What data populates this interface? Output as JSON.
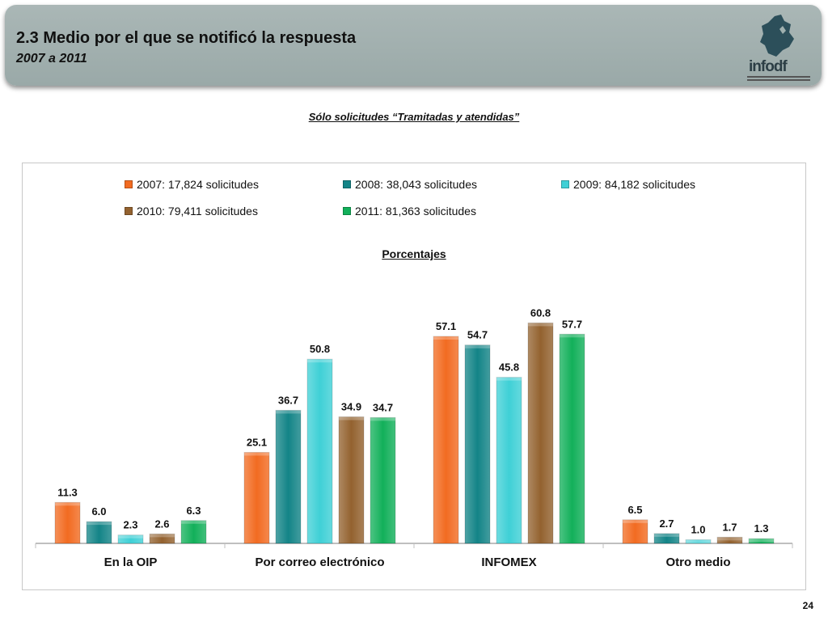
{
  "header": {
    "title": "2.3 Medio por el que se notificó la respuesta",
    "subtitle": "2007 a 2011",
    "logo_text": "infodf"
  },
  "note": "Sólo solicitudes “Tramitadas y atendidas”",
  "page_number": "24",
  "chart_data": {
    "type": "bar",
    "title": "Porcentajes",
    "categories": [
      "En la OIP",
      "Por correo electrónico",
      "INFOMEX",
      "Otro medio"
    ],
    "series": [
      {
        "name": "2007: 17,824 solicitudes",
        "color": "#f26b21",
        "values": [
          11.3,
          25.1,
          57.1,
          6.5
        ]
      },
      {
        "name": "2008: 38,043 solicitudes",
        "color": "#138487",
        "values": [
          6.0,
          36.7,
          54.7,
          2.7
        ]
      },
      {
        "name": "2009: 84,182 solicitudes",
        "color": "#3fd0d6",
        "values": [
          2.3,
          50.8,
          45.8,
          1.0
        ]
      },
      {
        "name": "2010: 79,411 solicitudes",
        "color": "#93622f",
        "values": [
          2.6,
          34.9,
          60.8,
          1.7
        ]
      },
      {
        "name": "2011: 81,363 solicitudes",
        "color": "#12b05a",
        "values": [
          6.3,
          34.7,
          57.7,
          1.3
        ]
      }
    ],
    "value_labels": [
      [
        "11.3",
        "25.1",
        "57.1",
        "6.5"
      ],
      [
        "6.0",
        "36.7",
        "54.7",
        "2.7"
      ],
      [
        "2.3",
        "50.8",
        "45.8",
        "1.0"
      ],
      [
        "2.6",
        "34.9",
        "60.8",
        "1.7"
      ],
      [
        "6.3",
        "34.7",
        "57.7",
        "1.3"
      ]
    ],
    "ylim": [
      0,
      62
    ],
    "grid": false,
    "legend_position": "top"
  }
}
